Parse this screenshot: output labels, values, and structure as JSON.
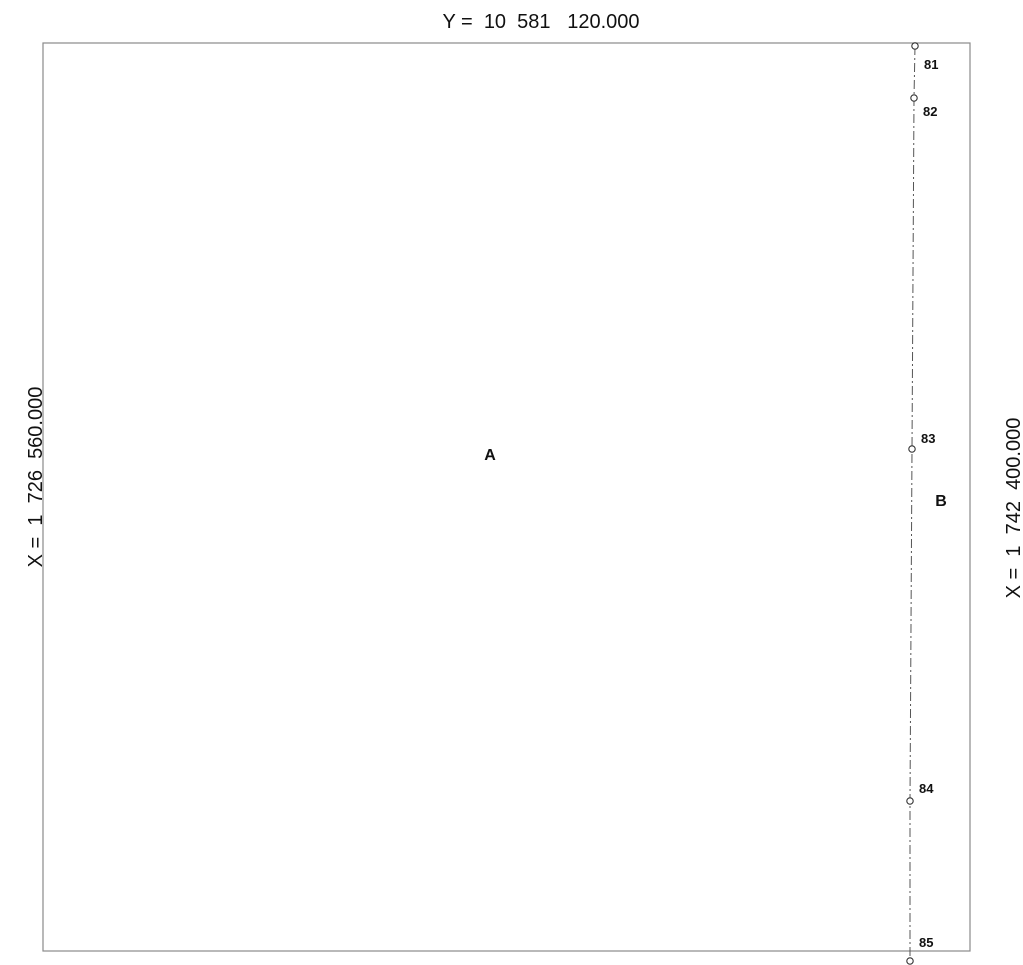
{
  "plan": {
    "top_coordinate": "Y =  10  581   120.000",
    "left_coordinate": "X =  1  726  560.000",
    "right_coordinate": "X =  1  742  400.000",
    "areas": [
      {
        "id": "a",
        "label": "A"
      },
      {
        "id": "b",
        "label": "B"
      }
    ],
    "points": [
      {
        "id": "81",
        "label": "81"
      },
      {
        "id": "82",
        "label": "82"
      },
      {
        "id": "83",
        "label": "83"
      },
      {
        "id": "84",
        "label": "84"
      },
      {
        "id": "85",
        "label": "85"
      }
    ],
    "colors": {
      "boundary": "#8a8a8a",
      "split_line": "#555555",
      "text": "#111111"
    }
  }
}
